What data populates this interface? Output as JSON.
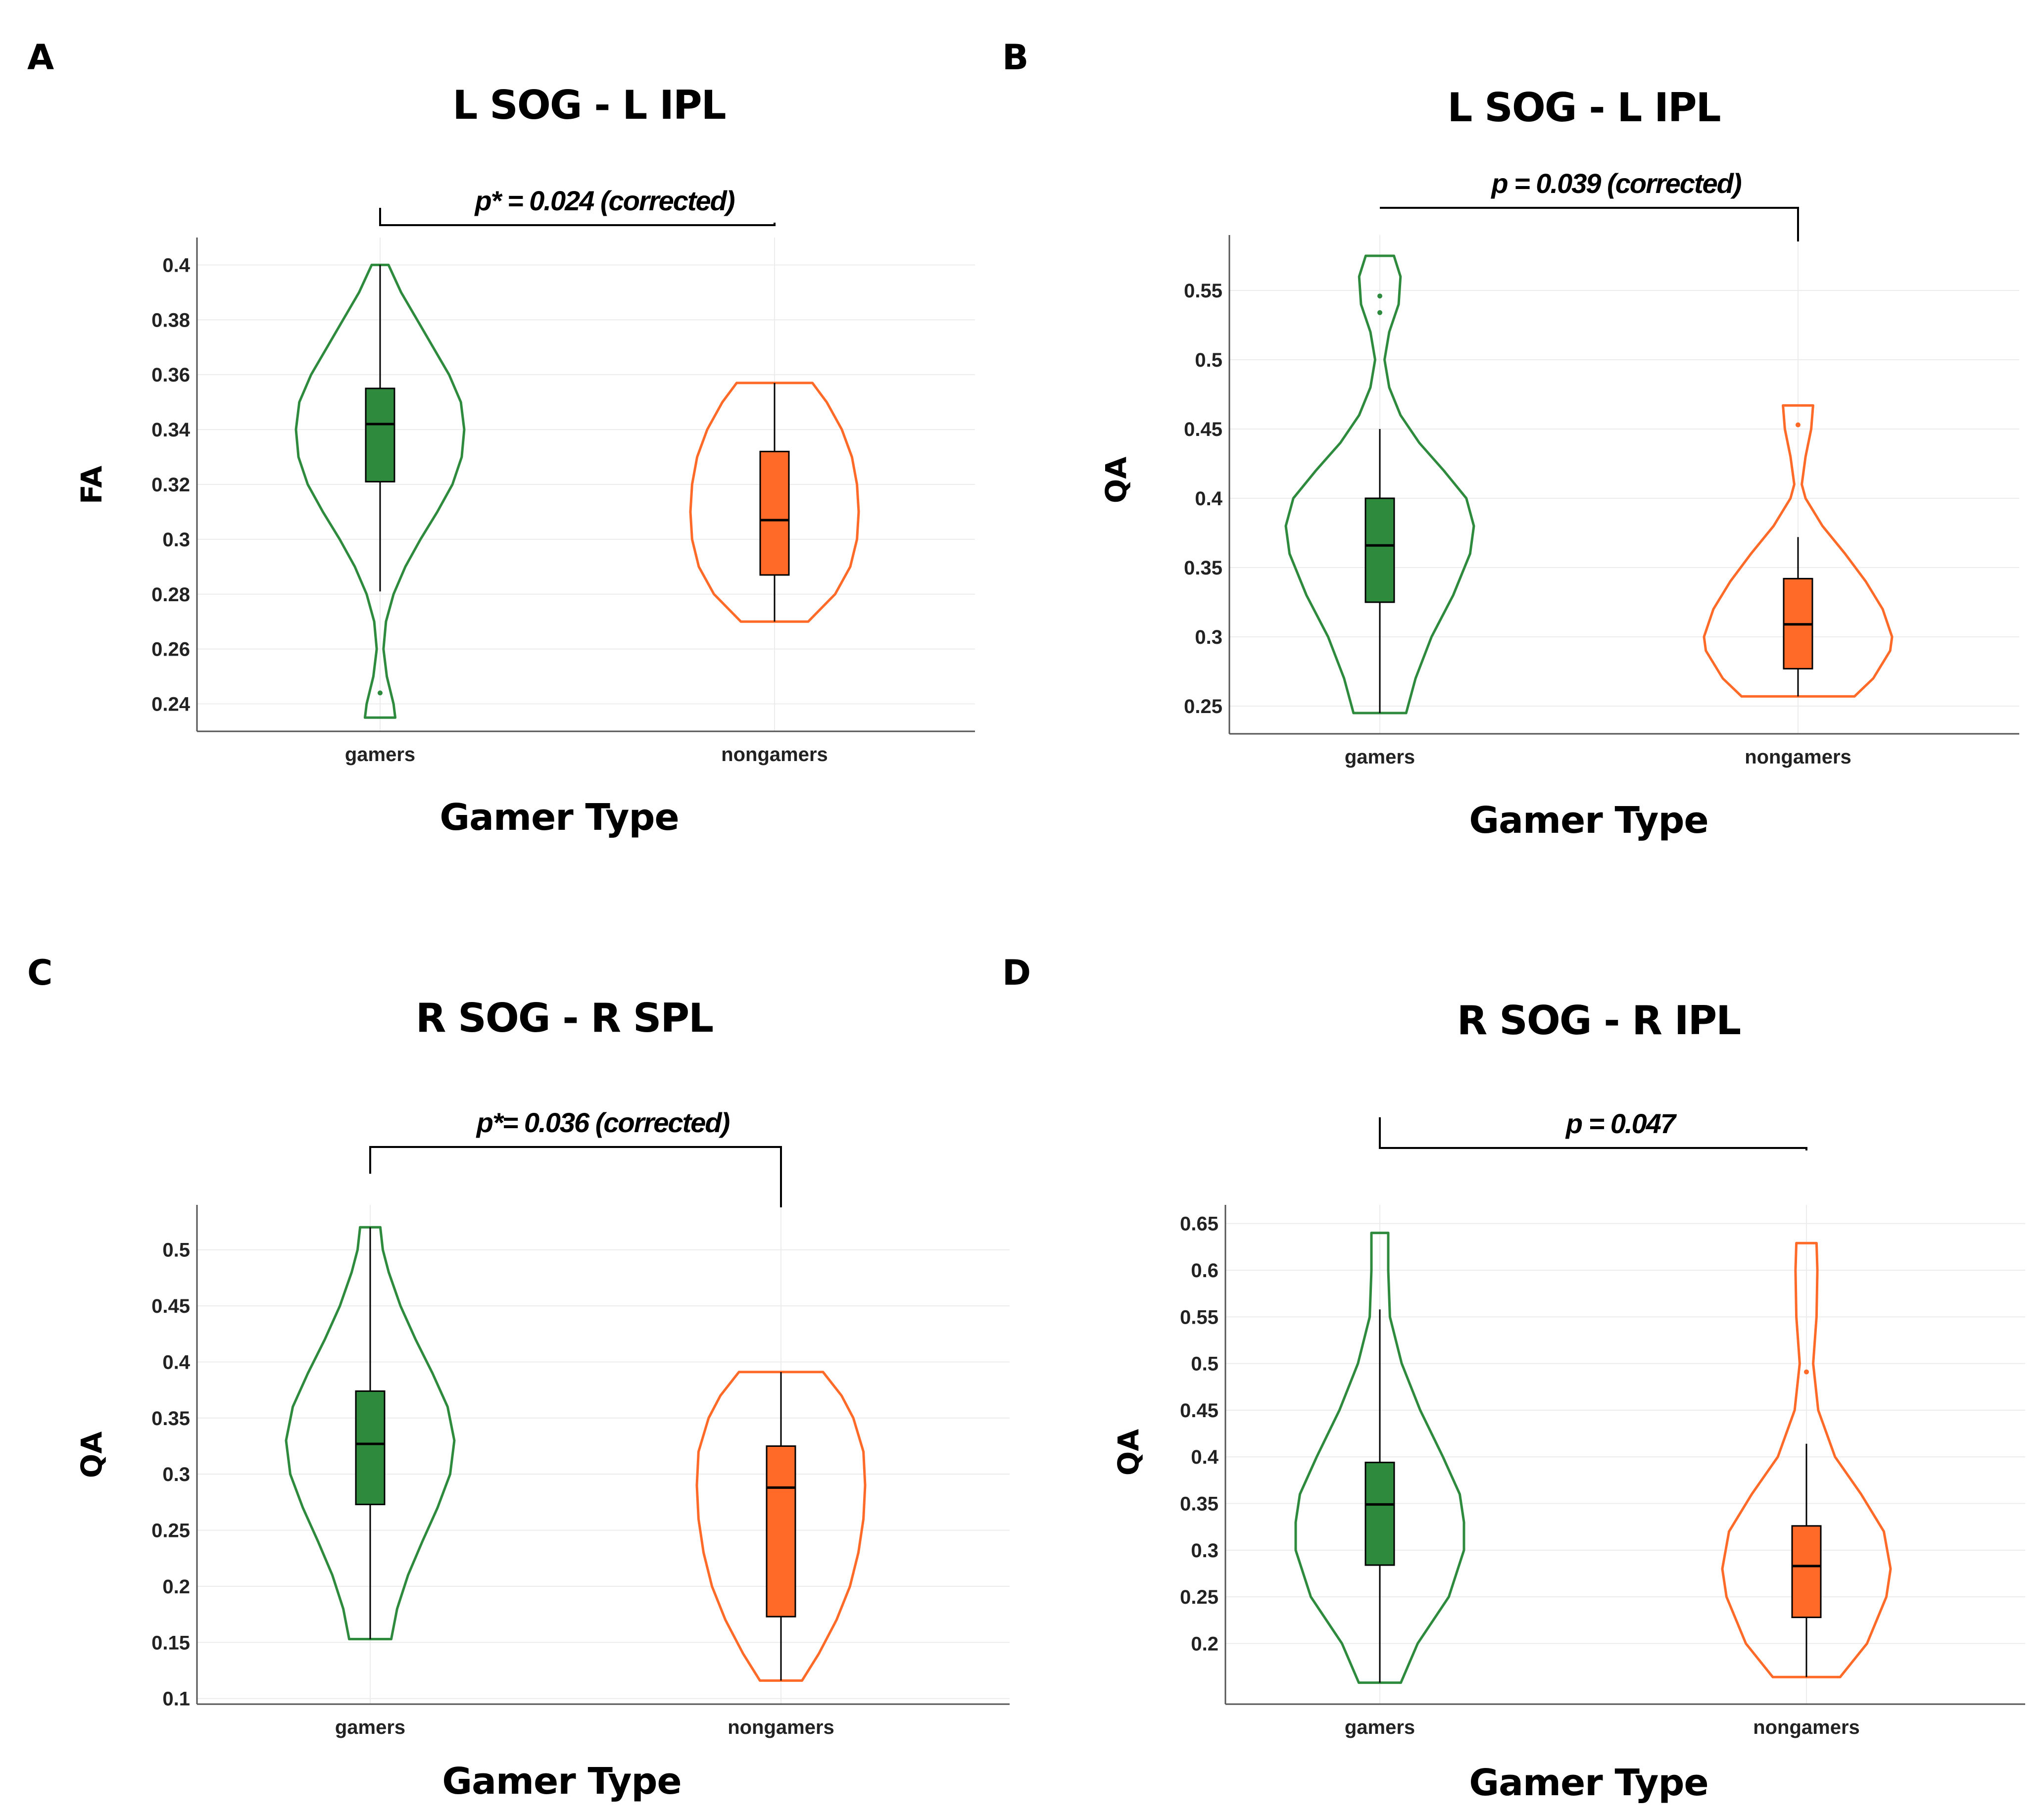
{
  "colors": {
    "gamers": "#2e8b3e",
    "nongamers": "#ff6a28"
  },
  "chart_data": [
    {
      "type": "violin",
      "panel": "A",
      "title": "L SOG - L IPL",
      "xlabel": "Gamer Type",
      "ylabel": "FA",
      "ylim": [
        0.23,
        0.41
      ],
      "yticks": [
        0.24,
        0.26,
        0.28,
        0.3,
        0.32,
        0.34,
        0.36,
        0.38,
        0.4
      ],
      "ytick_labels": [
        "0.24",
        "0.26",
        "0.28",
        "0.3",
        "0.32",
        "0.34",
        "0.36",
        "0.38",
        "0.4"
      ],
      "categories": [
        "gamers",
        "nongamers"
      ],
      "annotation": "p* = 0.024 (corrected)",
      "groups": [
        {
          "name": "gamers",
          "min": 0.235,
          "max": 0.4,
          "q1": 0.321,
          "median": 0.342,
          "q3": 0.355,
          "whisker_low": 0.281,
          "whisker_high": 0.4,
          "outliers": [
            0.244
          ],
          "density": [
            [
              0.235,
              0.18
            ],
            [
              0.24,
              0.16
            ],
            [
              0.25,
              0.08
            ],
            [
              0.26,
              0.04
            ],
            [
              0.27,
              0.07
            ],
            [
              0.28,
              0.16
            ],
            [
              0.29,
              0.3
            ],
            [
              0.3,
              0.48
            ],
            [
              0.31,
              0.68
            ],
            [
              0.32,
              0.86
            ],
            [
              0.33,
              0.97
            ],
            [
              0.34,
              1.0
            ],
            [
              0.35,
              0.96
            ],
            [
              0.36,
              0.82
            ],
            [
              0.37,
              0.63
            ],
            [
              0.38,
              0.44
            ],
            [
              0.39,
              0.25
            ],
            [
              0.4,
              0.1
            ]
          ]
        },
        {
          "name": "nongamers",
          "min": 0.27,
          "max": 0.357,
          "q1": 0.287,
          "median": 0.307,
          "q3": 0.332,
          "whisker_low": 0.27,
          "whisker_high": 0.357,
          "outliers": [],
          "density": [
            [
              0.27,
              0.4
            ],
            [
              0.28,
              0.72
            ],
            [
              0.29,
              0.9
            ],
            [
              0.3,
              0.98
            ],
            [
              0.31,
              1.0
            ],
            [
              0.32,
              0.98
            ],
            [
              0.33,
              0.92
            ],
            [
              0.34,
              0.8
            ],
            [
              0.35,
              0.62
            ],
            [
              0.357,
              0.45
            ]
          ]
        }
      ]
    },
    {
      "type": "violin",
      "panel": "B",
      "title": "L SOG - L IPL",
      "xlabel": "Gamer Type",
      "ylabel": "QA",
      "ylim": [
        0.23,
        0.59
      ],
      "yticks": [
        0.25,
        0.3,
        0.35,
        0.4,
        0.45,
        0.5,
        0.55
      ],
      "ytick_labels": [
        "0.25",
        "0.3",
        "0.35",
        "0.4",
        "0.45",
        "0.5",
        "0.55"
      ],
      "categories": [
        "gamers",
        "nongamers"
      ],
      "annotation": "p = 0.039 (corrected)",
      "groups": [
        {
          "name": "gamers",
          "min": 0.245,
          "max": 0.575,
          "q1": 0.325,
          "median": 0.366,
          "q3": 0.4,
          "whisker_low": 0.245,
          "whisker_high": 0.45,
          "outliers": [
            0.546,
            0.534
          ],
          "density": [
            [
              0.245,
              0.28
            ],
            [
              0.27,
              0.38
            ],
            [
              0.3,
              0.55
            ],
            [
              0.33,
              0.78
            ],
            [
              0.36,
              0.96
            ],
            [
              0.38,
              1.0
            ],
            [
              0.4,
              0.92
            ],
            [
              0.42,
              0.68
            ],
            [
              0.44,
              0.42
            ],
            [
              0.46,
              0.22
            ],
            [
              0.48,
              0.1
            ],
            [
              0.5,
              0.05
            ],
            [
              0.52,
              0.1
            ],
            [
              0.54,
              0.2
            ],
            [
              0.56,
              0.22
            ],
            [
              0.575,
              0.15
            ]
          ]
        },
        {
          "name": "nongamers",
          "min": 0.257,
          "max": 0.467,
          "q1": 0.277,
          "median": 0.309,
          "q3": 0.342,
          "whisker_low": 0.257,
          "whisker_high": 0.372,
          "outliers": [
            0.453
          ],
          "density": [
            [
              0.257,
              0.6
            ],
            [
              0.27,
              0.8
            ],
            [
              0.29,
              0.98
            ],
            [
              0.3,
              1.0
            ],
            [
              0.32,
              0.9
            ],
            [
              0.34,
              0.72
            ],
            [
              0.36,
              0.5
            ],
            [
              0.38,
              0.26
            ],
            [
              0.4,
              0.08
            ],
            [
              0.41,
              0.04
            ],
            [
              0.43,
              0.08
            ],
            [
              0.45,
              0.14
            ],
            [
              0.467,
              0.16
            ]
          ]
        }
      ]
    },
    {
      "type": "violin",
      "panel": "C",
      "title": "R SOG - R SPL",
      "xlabel": "Gamer Type",
      "ylabel": "QA",
      "ylim": [
        0.095,
        0.54
      ],
      "yticks": [
        0.1,
        0.15,
        0.2,
        0.25,
        0.3,
        0.35,
        0.4,
        0.45,
        0.5
      ],
      "ytick_labels": [
        "0.1",
        "0.15",
        "0.2",
        "0.25",
        "0.3",
        "0.35",
        "0.4",
        "0.45",
        "0.5"
      ],
      "categories": [
        "gamers",
        "nongamers"
      ],
      "annotation": "p*= 0.036 (corrected)",
      "groups": [
        {
          "name": "gamers",
          "min": 0.153,
          "max": 0.52,
          "q1": 0.273,
          "median": 0.327,
          "q3": 0.374,
          "whisker_low": 0.153,
          "whisker_high": 0.52,
          "outliers": [],
          "density": [
            [
              0.153,
              0.25
            ],
            [
              0.18,
              0.32
            ],
            [
              0.21,
              0.45
            ],
            [
              0.24,
              0.62
            ],
            [
              0.27,
              0.8
            ],
            [
              0.3,
              0.95
            ],
            [
              0.33,
              1.0
            ],
            [
              0.36,
              0.92
            ],
            [
              0.39,
              0.74
            ],
            [
              0.42,
              0.54
            ],
            [
              0.45,
              0.36
            ],
            [
              0.48,
              0.22
            ],
            [
              0.5,
              0.15
            ],
            [
              0.52,
              0.12
            ]
          ]
        },
        {
          "name": "nongamers",
          "min": 0.116,
          "max": 0.391,
          "q1": 0.173,
          "median": 0.288,
          "q3": 0.325,
          "whisker_low": 0.116,
          "whisker_high": 0.391,
          "outliers": [],
          "density": [
            [
              0.116,
              0.25
            ],
            [
              0.14,
              0.45
            ],
            [
              0.17,
              0.66
            ],
            [
              0.2,
              0.82
            ],
            [
              0.23,
              0.92
            ],
            [
              0.26,
              0.98
            ],
            [
              0.29,
              1.0
            ],
            [
              0.32,
              0.98
            ],
            [
              0.35,
              0.86
            ],
            [
              0.37,
              0.72
            ],
            [
              0.391,
              0.5
            ]
          ]
        }
      ]
    },
    {
      "type": "violin",
      "panel": "D",
      "title": "R SOG - R IPL",
      "xlabel": "Gamer Type",
      "ylabel": "QA",
      "ylim": [
        0.135,
        0.67
      ],
      "yticks": [
        0.2,
        0.25,
        0.3,
        0.35,
        0.4,
        0.45,
        0.5,
        0.55,
        0.6,
        0.65
      ],
      "ytick_labels": [
        "0.2",
        "0.25",
        "0.3",
        "0.35",
        "0.4",
        "0.45",
        "0.5",
        "0.55",
        "0.6",
        "0.65"
      ],
      "categories": [
        "gamers",
        "nongamers"
      ],
      "annotation": "p = 0.047",
      "groups": [
        {
          "name": "gamers",
          "min": 0.158,
          "max": 0.64,
          "q1": 0.284,
          "median": 0.349,
          "q3": 0.394,
          "whisker_low": 0.158,
          "whisker_high": 0.558,
          "outliers": [],
          "density": [
            [
              0.158,
              0.25
            ],
            [
              0.2,
              0.45
            ],
            [
              0.25,
              0.82
            ],
            [
              0.3,
              1.0
            ],
            [
              0.33,
              1.0
            ],
            [
              0.36,
              0.95
            ],
            [
              0.4,
              0.75
            ],
            [
              0.45,
              0.48
            ],
            [
              0.5,
              0.26
            ],
            [
              0.55,
              0.12
            ],
            [
              0.6,
              0.1
            ],
            [
              0.64,
              0.1
            ]
          ]
        },
        {
          "name": "nongamers",
          "min": 0.164,
          "max": 0.629,
          "q1": 0.228,
          "median": 0.283,
          "q3": 0.326,
          "whisker_low": 0.164,
          "whisker_high": 0.414,
          "outliers": [
            0.491
          ],
          "density": [
            [
              0.164,
              0.4
            ],
            [
              0.2,
              0.72
            ],
            [
              0.25,
              0.95
            ],
            [
              0.28,
              1.0
            ],
            [
              0.32,
              0.92
            ],
            [
              0.36,
              0.65
            ],
            [
              0.4,
              0.34
            ],
            [
              0.45,
              0.14
            ],
            [
              0.5,
              0.08
            ],
            [
              0.55,
              0.12
            ],
            [
              0.6,
              0.13
            ],
            [
              0.629,
              0.12
            ]
          ]
        }
      ]
    }
  ]
}
